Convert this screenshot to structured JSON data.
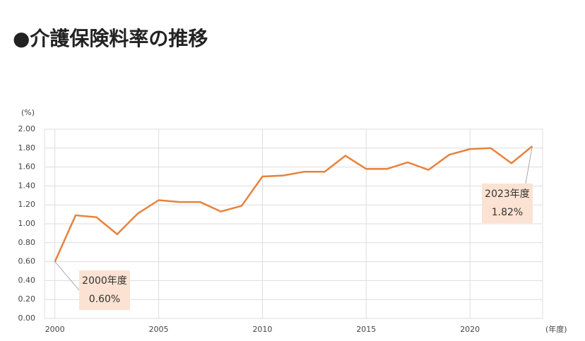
{
  "chart_data": {
    "type": "line",
    "title": "●介護保険料率の推移",
    "y_label": "(%)",
    "x_label": "(年度)",
    "x": [
      2000,
      2001,
      2002,
      2003,
      2004,
      2005,
      2006,
      2007,
      2008,
      2009,
      2010,
      2011,
      2012,
      2013,
      2014,
      2015,
      2016,
      2017,
      2018,
      2019,
      2020,
      2021,
      2022,
      2023
    ],
    "series": [
      {
        "color": "#e8823c",
        "values": [
          0.6,
          1.09,
          1.07,
          0.89,
          1.11,
          1.25,
          1.23,
          1.23,
          1.13,
          1.19,
          1.5,
          1.51,
          1.55,
          1.55,
          1.72,
          1.58,
          1.58,
          1.65,
          1.57,
          1.73,
          1.79,
          1.8,
          1.64,
          1.82
        ]
      }
    ],
    "xlim": [
      1999.5,
      2023.5
    ],
    "xticks": [
      2000,
      2005,
      2010,
      2015,
      2020
    ],
    "ylim": [
      0,
      2
    ],
    "yticks": [
      {
        "value": 0,
        "label": "0.00"
      },
      {
        "value": 0.2,
        "label": "0.20"
      },
      {
        "value": 0.4,
        "label": "0.40"
      },
      {
        "value": 0.6,
        "label": "0.60"
      },
      {
        "value": 0.8,
        "label": "0.80"
      },
      {
        "value": 1,
        "label": "1.00"
      },
      {
        "value": 1.2,
        "label": "1.20"
      },
      {
        "value": 1.4,
        "label": "1.40"
      },
      {
        "value": 1.6,
        "label": "1.60"
      },
      {
        "value": 1.8,
        "label": "1.80"
      },
      {
        "value": 2,
        "label": "2.00"
      }
    ],
    "grid": true,
    "annotations": [
      {
        "label": "2000年度",
        "value_label": "0.60%",
        "index": 0
      },
      {
        "label": "2023年度",
        "value_label": "1.82%",
        "index": 23
      }
    ],
    "annotation_color": "#fbe2d2"
  }
}
